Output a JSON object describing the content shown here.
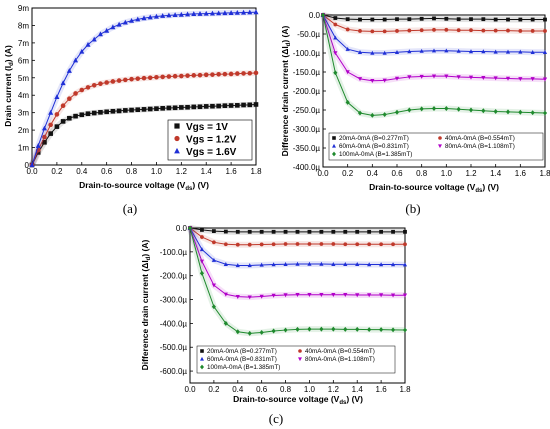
{
  "chart_data": [
    {
      "type": "line",
      "caption": "(a)",
      "xlabel": "Drain-to-source voltage (V_ds) (V)",
      "ylabel": "Drain current (I_d) (A)",
      "xlim": [
        0,
        1.8
      ],
      "ylim": [
        0,
        0.009
      ],
      "xticks": [
        "0.0",
        "0.2",
        "0.4",
        "0.6",
        "0.8",
        "1.0",
        "1.2",
        "1.4",
        "1.6",
        "1.8"
      ],
      "yticks": [
        "0",
        "1m",
        "2m",
        "3m",
        "4m",
        "5m",
        "6m",
        "7m",
        "8m",
        "9m"
      ],
      "legend_position": "bottom-right",
      "x": [
        0,
        0.05,
        0.1,
        0.15,
        0.2,
        0.25,
        0.3,
        0.35,
        0.4,
        0.45,
        0.5,
        0.55,
        0.6,
        0.65,
        0.7,
        0.75,
        0.8,
        0.85,
        0.9,
        0.95,
        1.0,
        1.05,
        1.1,
        1.15,
        1.2,
        1.25,
        1.3,
        1.35,
        1.4,
        1.45,
        1.5,
        1.55,
        1.6,
        1.65,
        1.7,
        1.75,
        1.8
      ],
      "series": [
        {
          "name": "Vgs = 1V",
          "marker": "square",
          "color": "#111111",
          "values": [
            0,
            0.00072,
            0.0013,
            0.0018,
            0.0022,
            0.0025,
            0.00268,
            0.0028,
            0.00288,
            0.00294,
            0.00298,
            0.00302,
            0.00305,
            0.00308,
            0.0031,
            0.00313,
            0.00315,
            0.00317,
            0.00319,
            0.00321,
            0.00323,
            0.00325,
            0.00327,
            0.00328,
            0.0033,
            0.00331,
            0.00333,
            0.00334,
            0.00336,
            0.00337,
            0.00338,
            0.0034,
            0.00341,
            0.00342,
            0.00344,
            0.00345,
            0.00347
          ]
        },
        {
          "name": "Vgs = 1.2V",
          "marker": "circle",
          "color": "#c0392b",
          "values": [
            0,
            0.00085,
            0.0016,
            0.0023,
            0.0029,
            0.0034,
            0.0038,
            0.0041,
            0.0043,
            0.00445,
            0.00457,
            0.00466,
            0.00473,
            0.00479,
            0.00484,
            0.00488,
            0.00492,
            0.00495,
            0.00498,
            0.005,
            0.00503,
            0.00505,
            0.00507,
            0.00509,
            0.0051,
            0.00512,
            0.00514,
            0.00515,
            0.00517,
            0.00518,
            0.0052,
            0.00521,
            0.00522,
            0.00524,
            0.00525,
            0.00526,
            0.00528
          ]
        },
        {
          "name": "Vgs = 1.6V",
          "marker": "triangle",
          "color": "#1f2fd6",
          "values": [
            0,
            0.0011,
            0.0021,
            0.003,
            0.0039,
            0.0047,
            0.0054,
            0.006,
            0.0065,
            0.0069,
            0.0072,
            0.0075,
            0.0077,
            0.0079,
            0.00805,
            0.00817,
            0.00827,
            0.00835,
            0.00842,
            0.00847,
            0.00851,
            0.00855,
            0.00858,
            0.0086,
            0.00862,
            0.00864,
            0.00866,
            0.00867,
            0.00868,
            0.00869,
            0.0087,
            0.00871,
            0.00872,
            0.00873,
            0.00874,
            0.00875,
            0.00876
          ]
        }
      ]
    },
    {
      "type": "line",
      "caption": "(b)",
      "xlabel": "Drain-to-source voltage (V_ds) (V)",
      "ylabel": "Difference drain current (ΔI_d) (A)",
      "xlim": [
        0,
        1.8
      ],
      "ylim": [
        -0.0004,
        0
      ],
      "xticks": [
        "0.0",
        "0.2",
        "0.4",
        "0.6",
        "0.8",
        "1.0",
        "1.2",
        "1.4",
        "1.6",
        "1.8"
      ],
      "yticks": [
        "0.0",
        "-50.0µ",
        "-100.0µ",
        "-150.0µ",
        "-200.0µ",
        "-250.0µ",
        "-300.0µ",
        "-350.0µ",
        "-400.0µ"
      ],
      "legend_position": "bottom",
      "x": [
        0,
        0.1,
        0.2,
        0.3,
        0.4,
        0.5,
        0.6,
        0.7,
        0.8,
        0.9,
        1.0,
        1.1,
        1.2,
        1.3,
        1.4,
        1.5,
        1.6,
        1.7,
        1.8
      ],
      "series": [
        {
          "name": "20mA-0mA (B=0.277mT)",
          "marker": "square",
          "color": "#111111",
          "values": [
            0,
            -8e-06,
            -1.1e-05,
            -1.2e-05,
            -1.2e-05,
            -1.2e-05,
            -1.1e-05,
            -1.1e-05,
            -1e-05,
            -9e-06,
            -1e-05,
            -1.1e-05,
            -1.1e-05,
            -1.1e-05,
            -1.2e-05,
            -1.2e-05,
            -1.2e-05,
            -1.2e-05,
            -1.2e-05
          ]
        },
        {
          "name": "40mA-0mA (B=0.554mT)",
          "marker": "circle",
          "color": "#c0392b",
          "values": [
            0,
            -2.5e-05,
            -3.8e-05,
            -4.2e-05,
            -4.3e-05,
            -4.3e-05,
            -4.2e-05,
            -4.1e-05,
            -4e-05,
            -3.9e-05,
            -3.9e-05,
            -4e-05,
            -4e-05,
            -4.1e-05,
            -4.1e-05,
            -4.1e-05,
            -4.2e-05,
            -4.2e-05,
            -4.2e-05
          ]
        },
        {
          "name": "60mA-0mA (B=0.831mT)",
          "marker": "triangle",
          "color": "#1f2fd6",
          "values": [
            0,
            -6e-05,
            -9e-05,
            -9.8e-05,
            -0.0001,
            -0.0001,
            -9.8e-05,
            -9.6e-05,
            -9.5e-05,
            -9.4e-05,
            -9.4e-05,
            -9.5e-05,
            -9.6e-05,
            -9.6e-05,
            -9.7e-05,
            -9.7e-05,
            -9.7e-05,
            -9.8e-05,
            -9.8e-05
          ]
        },
        {
          "name": "80mA-0mA (B=1.108mT)",
          "marker": "triangle-down",
          "color": "#b100c9",
          "values": [
            0,
            -0.0001,
            -0.00015,
            -0.000168,
            -0.000173,
            -0.000172,
            -0.000167,
            -0.000163,
            -0.000162,
            -0.000161,
            -0.000161,
            -0.000163,
            -0.000164,
            -0.000165,
            -0.000166,
            -0.000167,
            -0.000168,
            -0.000168,
            -0.000169
          ]
        },
        {
          "name": "100mA-0mA (B=1.385mT)",
          "marker": "diamond",
          "color": "#1f8a2e",
          "values": [
            0,
            -0.000152,
            -0.00023,
            -0.000258,
            -0.000264,
            -0.000262,
            -0.000256,
            -0.00025,
            -0.000247,
            -0.000246,
            -0.000246,
            -0.000248,
            -0.00025,
            -0.000252,
            -0.000254,
            -0.000255,
            -0.000256,
            -0.000257,
            -0.000258
          ]
        }
      ]
    },
    {
      "type": "line",
      "caption": "(c)",
      "xlabel": "Drain-to-source voltage (V_ds) (V)",
      "ylabel": "Difference drain current (ΔI_d) (A)",
      "xlim": [
        0,
        1.8
      ],
      "ylim": [
        -0.00065,
        0
      ],
      "xticks": [
        "0.0",
        "0.2",
        "0.4",
        "0.6",
        "0.8",
        "1.0",
        "1.2",
        "1.4",
        "1.6",
        "1.8"
      ],
      "yticks": [
        "0.0",
        "-100.0µ",
        "-200.0µ",
        "-300.0µ",
        "-400.0µ",
        "-500.0µ",
        "-600.0µ"
      ],
      "legend_position": "bottom",
      "x": [
        0,
        0.1,
        0.2,
        0.3,
        0.4,
        0.5,
        0.6,
        0.7,
        0.8,
        0.9,
        1.0,
        1.1,
        1.2,
        1.3,
        1.4,
        1.5,
        1.6,
        1.7,
        1.8
      ],
      "series": [
        {
          "name": "20mA-0mA (B=0.277mT)",
          "marker": "square",
          "color": "#111111",
          "values": [
            0,
            -8e-06,
            -1.3e-05,
            -1.5e-05,
            -1.6e-05,
            -1.6e-05,
            -1.6e-05,
            -1.6e-05,
            -1.6e-05,
            -1.6e-05,
            -1.6e-05,
            -1.6e-05,
            -1.6e-05,
            -1.6e-05,
            -1.6e-05,
            -1.6e-05,
            -1.6e-05,
            -1.6e-05,
            -1.6e-05
          ]
        },
        {
          "name": "40mA-0mA (B=0.554mT)",
          "marker": "circle",
          "color": "#c0392b",
          "values": [
            0,
            -3.8e-05,
            -6e-05,
            -6.8e-05,
            -7e-05,
            -7e-05,
            -6.9e-05,
            -6.8e-05,
            -6.7e-05,
            -6.7e-05,
            -6.7e-05,
            -6.7e-05,
            -6.7e-05,
            -6.8e-05,
            -6.8e-05,
            -6.8e-05,
            -6.8e-05,
            -6.8e-05,
            -6.8e-05
          ]
        },
        {
          "name": "60mA-0mA (B=0.831mT)",
          "marker": "triangle",
          "color": "#1f2fd6",
          "values": [
            0,
            -9e-05,
            -0.000135,
            -0.000152,
            -0.000157,
            -0.000157,
            -0.000155,
            -0.000153,
            -0.000152,
            -0.000151,
            -0.000151,
            -0.000151,
            -0.000152,
            -0.000152,
            -0.000152,
            -0.000153,
            -0.000153,
            -0.000153,
            -0.000154
          ]
        },
        {
          "name": "80mA-0mA (B=1.108mT)",
          "marker": "triangle-down",
          "color": "#b100c9",
          "values": [
            0,
            -0.00014,
            -0.00024,
            -0.000278,
            -0.000288,
            -0.00029,
            -0.000287,
            -0.000283,
            -0.000281,
            -0.00028,
            -0.00028,
            -0.00028,
            -0.00028,
            -0.00028,
            -0.000281,
            -0.000281,
            -0.000281,
            -0.000282,
            -0.000282
          ]
        },
        {
          "name": "100mA-0mA (B=1.385mT)",
          "marker": "diamond",
          "color": "#1f8a2e",
          "values": [
            0,
            -0.00019,
            -0.00033,
            -0.0004,
            -0.000435,
            -0.000442,
            -0.000438,
            -0.000432,
            -0.000428,
            -0.000425,
            -0.000424,
            -0.000424,
            -0.000424,
            -0.000425,
            -0.000425,
            -0.000426,
            -0.000426,
            -0.000427,
            -0.000428
          ]
        }
      ]
    }
  ]
}
